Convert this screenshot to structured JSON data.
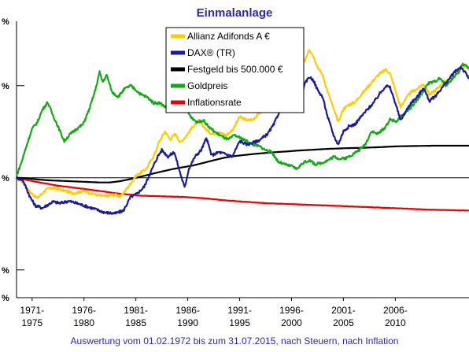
{
  "chart_data": {
    "type": "line",
    "title": "Einmalanlage",
    "footnote": "Auswertung vom 01.02.1972 bis zum 31.07.2015, nach Steuern, nach Inflation",
    "xlim": [
      1972.0,
      2015.6
    ],
    "ylim": [
      0.05,
      50
    ],
    "log_scale": true,
    "y_tick_values": [
      0.05,
      0.1,
      1,
      10,
      50
    ],
    "y_tick_labels": [
      "%",
      "%",
      "%",
      "%",
      "%"
    ],
    "x_ticks": [
      {
        "x": 1973.5,
        "line1": "1971-",
        "line2": "1975"
      },
      {
        "x": 1978.5,
        "line1": "1976-",
        "line2": "1980"
      },
      {
        "x": 1983.5,
        "line1": "1981-",
        "line2": "1985"
      },
      {
        "x": 1988.5,
        "line1": "1986-",
        "line2": "1990"
      },
      {
        "x": 1993.5,
        "line1": "1991-",
        "line2": "1995"
      },
      {
        "x": 1998.5,
        "line1": "1996-",
        "line2": "2000"
      },
      {
        "x": 2003.5,
        "line1": "2001-",
        "line2": "2005"
      },
      {
        "x": 2008.5,
        "line1": "2006-",
        "line2": "2010"
      }
    ],
    "legend_position": "top-center",
    "series": [
      {
        "name": "Allianz Adifonds A €",
        "color": "#ffcc00",
        "points": [
          [
            1972.0,
            1.0
          ],
          [
            1972.6,
            0.9
          ],
          [
            1973.3,
            0.7
          ],
          [
            1974.0,
            0.6
          ],
          [
            1974.8,
            0.74
          ],
          [
            1975.5,
            0.78
          ],
          [
            1976.5,
            0.73
          ],
          [
            1977.5,
            0.68
          ],
          [
            1978.5,
            0.72
          ],
          [
            1979.5,
            0.66
          ],
          [
            1980.5,
            0.63
          ],
          [
            1981.5,
            0.66
          ],
          [
            1982.0,
            0.62
          ],
          [
            1982.7,
            0.78
          ],
          [
            1983.5,
            1.05
          ],
          [
            1984.5,
            1.25
          ],
          [
            1985.3,
            1.8
          ],
          [
            1985.7,
            2.4
          ],
          [
            1986.3,
            3.2
          ],
          [
            1986.8,
            2.6
          ],
          [
            1987.3,
            3.0
          ],
          [
            1987.8,
            2.4
          ],
          [
            1988.4,
            2.9
          ],
          [
            1989.0,
            3.6
          ],
          [
            1989.6,
            4.2
          ],
          [
            1990.2,
            3.4
          ],
          [
            1990.8,
            3.0
          ],
          [
            1991.5,
            3.1
          ],
          [
            1992.2,
            2.9
          ],
          [
            1992.8,
            3.3
          ],
          [
            1993.5,
            4.6
          ],
          [
            1994.2,
            4.2
          ],
          [
            1994.8,
            4.3
          ],
          [
            1995.5,
            5.2
          ],
          [
            1996.2,
            6.3
          ],
          [
            1996.8,
            7.6
          ],
          [
            1997.4,
            10.5
          ],
          [
            1997.9,
            11.2
          ],
          [
            1998.4,
            15.0
          ],
          [
            1998.8,
            10.5
          ],
          [
            1999.3,
            14.5
          ],
          [
            1999.8,
            19.0
          ],
          [
            2000.2,
            25.0
          ],
          [
            2000.6,
            21.0
          ],
          [
            2001.0,
            16.0
          ],
          [
            2001.5,
            13.0
          ],
          [
            2002.0,
            8.5
          ],
          [
            2002.6,
            5.4
          ],
          [
            2003.0,
            4.0
          ],
          [
            2003.5,
            5.6
          ],
          [
            2004.0,
            6.2
          ],
          [
            2004.6,
            6.6
          ],
          [
            2005.2,
            8.0
          ],
          [
            2005.8,
            9.5
          ],
          [
            2006.4,
            11.5
          ],
          [
            2007.0,
            13.5
          ],
          [
            2007.6,
            15.0
          ],
          [
            2008.0,
            13.5
          ],
          [
            2008.5,
            9.0
          ],
          [
            2009.0,
            5.8
          ],
          [
            2009.4,
            7.0
          ],
          [
            2010.0,
            8.5
          ],
          [
            2010.6,
            9.2
          ],
          [
            2011.2,
            10.5
          ],
          [
            2011.8,
            8.0
          ],
          [
            2012.4,
            9.0
          ],
          [
            2013.0,
            10.5
          ],
          [
            2013.6,
            11.8
          ],
          [
            2014.2,
            13.0
          ],
          [
            2014.8,
            15.0
          ],
          [
            2015.3,
            16.5
          ],
          [
            2015.6,
            15.5
          ]
        ]
      },
      {
        "name": "DAX® (TR)",
        "color": "#1a1aa0",
        "points": [
          [
            1972.0,
            1.0
          ],
          [
            1972.6,
            0.95
          ],
          [
            1973.3,
            0.62
          ],
          [
            1973.8,
            0.5
          ],
          [
            1974.5,
            0.47
          ],
          [
            1975.5,
            0.55
          ],
          [
            1976.2,
            0.53
          ],
          [
            1977.0,
            0.56
          ],
          [
            1977.8,
            0.53
          ],
          [
            1978.5,
            0.5
          ],
          [
            1979.5,
            0.46
          ],
          [
            1980.5,
            0.42
          ],
          [
            1981.5,
            0.41
          ],
          [
            1982.3,
            0.44
          ],
          [
            1983.0,
            0.62
          ],
          [
            1983.6,
            0.67
          ],
          [
            1984.3,
            0.8
          ],
          [
            1985.0,
            1.2
          ],
          [
            1985.6,
            1.7
          ],
          [
            1986.0,
            2.0
          ],
          [
            1986.6,
            1.7
          ],
          [
            1987.2,
            1.9
          ],
          [
            1987.8,
            1.1
          ],
          [
            1988.2,
            0.78
          ],
          [
            1988.6,
            1.25
          ],
          [
            1989.2,
            1.7
          ],
          [
            1989.8,
            2.0
          ],
          [
            1990.3,
            2.7
          ],
          [
            1990.8,
            1.75
          ],
          [
            1991.5,
            1.9
          ],
          [
            1992.2,
            1.8
          ],
          [
            1992.8,
            1.7
          ],
          [
            1993.5,
            2.5
          ],
          [
            1994.2,
            2.3
          ],
          [
            1994.8,
            2.4
          ],
          [
            1995.5,
            2.6
          ],
          [
            1996.2,
            3.0
          ],
          [
            1996.8,
            3.8
          ],
          [
            1997.4,
            5.5
          ],
          [
            1997.9,
            5.4
          ],
          [
            1998.4,
            8.0
          ],
          [
            1998.8,
            5.6
          ],
          [
            1999.3,
            7.0
          ],
          [
            1999.8,
            10.5
          ],
          [
            2000.2,
            12.5
          ],
          [
            2000.6,
            11.5
          ],
          [
            2001.0,
            9.0
          ],
          [
            2001.5,
            7.5
          ],
          [
            2002.0,
            4.5
          ],
          [
            2002.6,
            2.8
          ],
          [
            2003.0,
            2.3
          ],
          [
            2003.5,
            3.2
          ],
          [
            2004.0,
            3.6
          ],
          [
            2004.6,
            3.8
          ],
          [
            2005.2,
            4.6
          ],
          [
            2005.8,
            5.5
          ],
          [
            2006.4,
            6.5
          ],
          [
            2007.0,
            8.2
          ],
          [
            2007.6,
            10.0
          ],
          [
            2008.0,
            9.5
          ],
          [
            2008.5,
            6.5
          ],
          [
            2009.0,
            4.2
          ],
          [
            2009.4,
            5.0
          ],
          [
            2010.0,
            6.5
          ],
          [
            2010.6,
            7.5
          ],
          [
            2011.2,
            9.5
          ],
          [
            2011.8,
            6.8
          ],
          [
            2012.4,
            7.8
          ],
          [
            2013.0,
            9.5
          ],
          [
            2013.6,
            11.5
          ],
          [
            2014.2,
            14.0
          ],
          [
            2014.8,
            16.0
          ],
          [
            2015.3,
            13.5
          ],
          [
            2015.6,
            12.0
          ]
        ]
      },
      {
        "name": "Festgeld bis 500.000 €",
        "color": "#000000",
        "points": [
          [
            1972.0,
            1.0
          ],
          [
            1973.0,
            0.99
          ],
          [
            1974.0,
            0.96
          ],
          [
            1975.0,
            0.94
          ],
          [
            1976.0,
            0.93
          ],
          [
            1977.0,
            0.92
          ],
          [
            1978.0,
            0.91
          ],
          [
            1979.0,
            0.9
          ],
          [
            1980.0,
            0.89
          ],
          [
            1981.0,
            0.89
          ],
          [
            1982.0,
            0.92
          ],
          [
            1983.0,
            0.97
          ],
          [
            1984.0,
            1.03
          ],
          [
            1985.0,
            1.1
          ],
          [
            1986.0,
            1.17
          ],
          [
            1987.0,
            1.24
          ],
          [
            1988.0,
            1.3
          ],
          [
            1989.0,
            1.36
          ],
          [
            1990.0,
            1.45
          ],
          [
            1991.0,
            1.55
          ],
          [
            1992.0,
            1.65
          ],
          [
            1993.0,
            1.72
          ],
          [
            1994.0,
            1.77
          ],
          [
            1995.0,
            1.82
          ],
          [
            1996.0,
            1.86
          ],
          [
            1997.0,
            1.9
          ],
          [
            1998.0,
            1.93
          ],
          [
            1999.0,
            1.97
          ],
          [
            2000.0,
            2.0
          ],
          [
            2001.0,
            2.03
          ],
          [
            2002.0,
            2.06
          ],
          [
            2003.0,
            2.08
          ],
          [
            2004.0,
            2.1
          ],
          [
            2005.0,
            2.11
          ],
          [
            2006.0,
            2.13
          ],
          [
            2007.0,
            2.15
          ],
          [
            2008.0,
            2.18
          ],
          [
            2009.0,
            2.2
          ],
          [
            2010.0,
            2.21
          ],
          [
            2011.0,
            2.22
          ],
          [
            2012.0,
            2.23
          ],
          [
            2013.0,
            2.23
          ],
          [
            2014.0,
            2.23
          ],
          [
            2015.6,
            2.23
          ]
        ]
      },
      {
        "name": "Goldpreis",
        "color": "#11aa11",
        "points": [
          [
            1972.0,
            1.05
          ],
          [
            1972.5,
            1.5
          ],
          [
            1973.0,
            2.3
          ],
          [
            1973.5,
            3.4
          ],
          [
            1974.0,
            4.0
          ],
          [
            1974.5,
            5.5
          ],
          [
            1975.0,
            6.6
          ],
          [
            1975.5,
            4.8
          ],
          [
            1976.0,
            3.6
          ],
          [
            1976.6,
            2.5
          ],
          [
            1977.2,
            3.0
          ],
          [
            1977.8,
            3.4
          ],
          [
            1978.4,
            3.8
          ],
          [
            1979.0,
            5.5
          ],
          [
            1979.6,
            9.0
          ],
          [
            1980.0,
            14.0
          ],
          [
            1980.3,
            11.0
          ],
          [
            1980.7,
            13.0
          ],
          [
            1981.2,
            8.5
          ],
          [
            1981.8,
            7.6
          ],
          [
            1982.4,
            9.2
          ],
          [
            1983.0,
            10.0
          ],
          [
            1983.5,
            9.0
          ],
          [
            1984.0,
            8.0
          ],
          [
            1984.6,
            7.5
          ],
          [
            1985.2,
            6.5
          ],
          [
            1985.8,
            6.5
          ],
          [
            1986.4,
            5.8
          ],
          [
            1987.0,
            6.0
          ],
          [
            1987.6,
            6.2
          ],
          [
            1988.2,
            5.8
          ],
          [
            1988.8,
            4.6
          ],
          [
            1989.4,
            4.0
          ],
          [
            1990.0,
            4.2
          ],
          [
            1990.6,
            3.5
          ],
          [
            1991.2,
            3.1
          ],
          [
            1991.8,
            2.8
          ],
          [
            1992.4,
            2.6
          ],
          [
            1993.0,
            2.9
          ],
          [
            1993.6,
            2.7
          ],
          [
            1994.2,
            2.5
          ],
          [
            1994.8,
            2.3
          ],
          [
            1995.4,
            2.2
          ],
          [
            1996.0,
            2.0
          ],
          [
            1996.6,
            1.9
          ],
          [
            1997.2,
            1.5
          ],
          [
            1997.8,
            1.4
          ],
          [
            1998.4,
            1.35
          ],
          [
            1999.0,
            1.25
          ],
          [
            1999.6,
            1.45
          ],
          [
            2000.2,
            1.55
          ],
          [
            2000.8,
            1.4
          ],
          [
            2001.4,
            1.45
          ],
          [
            2002.0,
            1.55
          ],
          [
            2002.6,
            1.7
          ],
          [
            2003.2,
            1.6
          ],
          [
            2003.8,
            1.65
          ],
          [
            2004.4,
            1.8
          ],
          [
            2005.0,
            2.0
          ],
          [
            2005.6,
            2.3
          ],
          [
            2006.2,
            3.2
          ],
          [
            2006.8,
            3.0
          ],
          [
            2007.4,
            3.4
          ],
          [
            2008.0,
            4.3
          ],
          [
            2008.6,
            4.1
          ],
          [
            2009.2,
            4.8
          ],
          [
            2009.8,
            5.5
          ],
          [
            2010.4,
            6.5
          ],
          [
            2011.0,
            8.0
          ],
          [
            2011.6,
            10.5
          ],
          [
            2012.2,
            11.0
          ],
          [
            2012.8,
            12.0
          ],
          [
            2013.4,
            10.0
          ],
          [
            2014.0,
            12.0
          ],
          [
            2014.6,
            14.0
          ],
          [
            2015.0,
            17.0
          ],
          [
            2015.3,
            16.5
          ],
          [
            2015.6,
            15.5
          ]
        ]
      },
      {
        "name": "Inflationsrate",
        "color": "#ee0000",
        "points": [
          [
            1972.0,
            1.0
          ],
          [
            1974.0,
            0.9
          ],
          [
            1976.0,
            0.82
          ],
          [
            1978.0,
            0.77
          ],
          [
            1980.0,
            0.72
          ],
          [
            1982.0,
            0.67
          ],
          [
            1984.0,
            0.64
          ],
          [
            1986.0,
            0.63
          ],
          [
            1988.0,
            0.62
          ],
          [
            1990.0,
            0.6
          ],
          [
            1992.0,
            0.57
          ],
          [
            1994.0,
            0.55
          ],
          [
            1996.0,
            0.53
          ],
          [
            1998.0,
            0.52
          ],
          [
            2000.0,
            0.51
          ],
          [
            2002.0,
            0.5
          ],
          [
            2004.0,
            0.49
          ],
          [
            2006.0,
            0.48
          ],
          [
            2008.0,
            0.47
          ],
          [
            2010.0,
            0.46
          ],
          [
            2012.0,
            0.45
          ],
          [
            2015.6,
            0.44
          ]
        ]
      }
    ]
  }
}
